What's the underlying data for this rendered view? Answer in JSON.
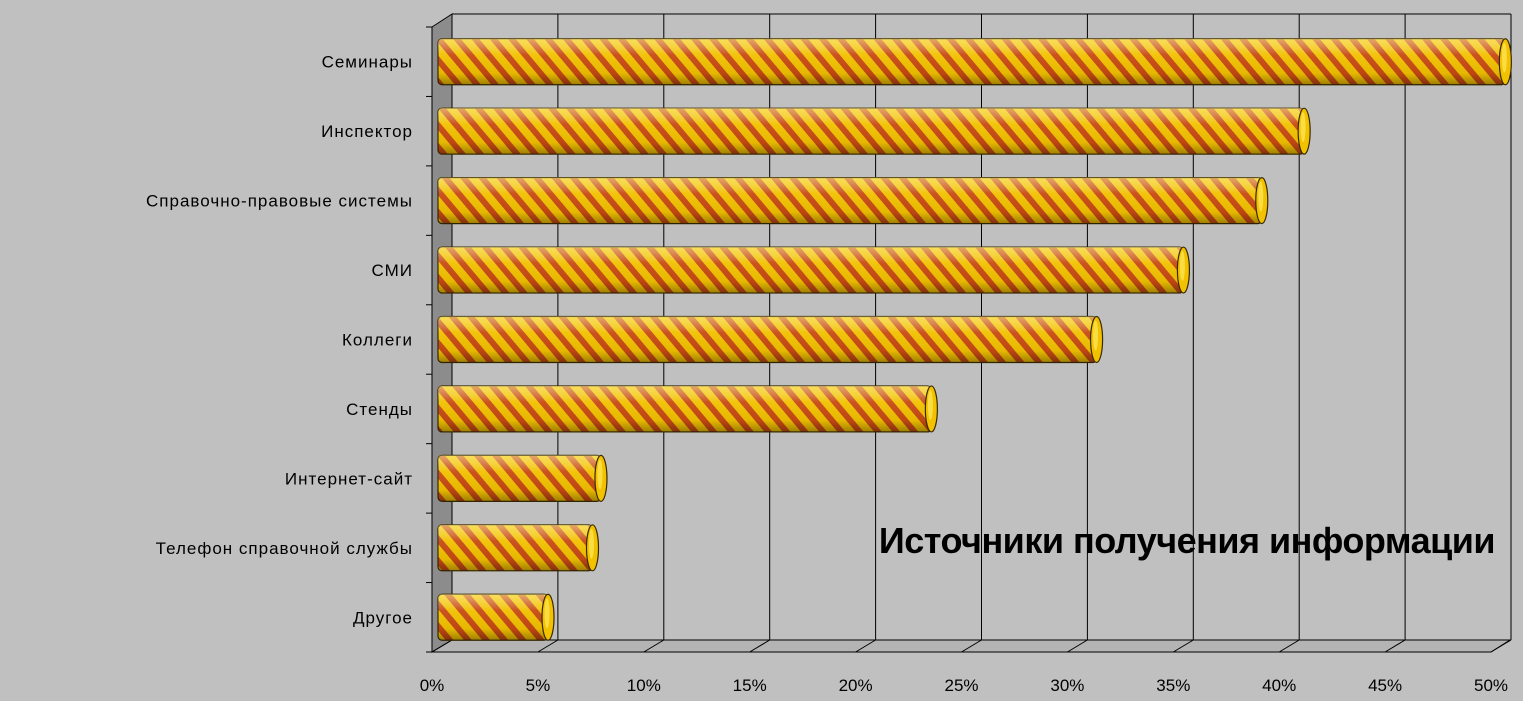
{
  "chart_data": {
    "type": "bar",
    "orientation": "horizontal",
    "title": "Источники получения информации",
    "categories": [
      "Семинары",
      "Инспектор",
      "Справочно-правовые системы",
      "СМИ",
      "Коллеги",
      "Стенды",
      "Интернет-сайт",
      "Телефон справочной службы",
      "Другое"
    ],
    "values": [
      50.3,
      40.8,
      38.8,
      35.1,
      31.0,
      23.2,
      7.6,
      7.2,
      5.1
    ],
    "xlim": [
      0,
      50
    ],
    "x_ticks": [
      "0%",
      "5%",
      "10%",
      "15%",
      "20%",
      "25%",
      "30%",
      "35%",
      "40%",
      "45%",
      "50%"
    ],
    "grid": true,
    "legend": "none",
    "colors": {
      "background": "#c0c0c0",
      "bar_fill": "#f2c100",
      "bar_stripe": "#c84a14",
      "bar_highlight": "#fff070",
      "bar_outline": "#3a2a00",
      "grid": "#000000",
      "wall_side": "#8c8c8c"
    }
  }
}
